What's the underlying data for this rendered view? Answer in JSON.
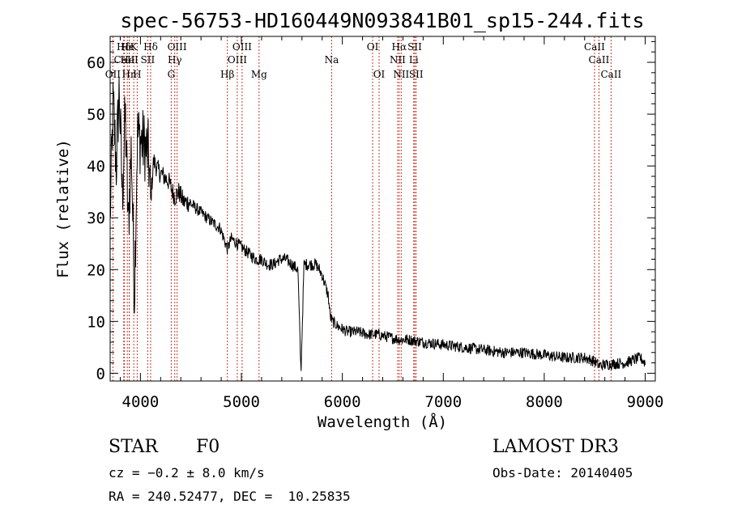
{
  "chart_data": {
    "type": "line",
    "title": "spec-56753-HD160449N093841B01_sp15-244.fits",
    "xlabel": "Wavelength (Å)",
    "ylabel": "Flux (relative)",
    "xlim": [
      3700,
      9100
    ],
    "ylim": [
      -1.5,
      65
    ],
    "xticks": [
      4000,
      5000,
      6000,
      7000,
      8000,
      9000
    ],
    "xtick_labels": [
      "4000",
      "5000",
      "6000",
      "7000",
      "8000",
      "9000"
    ],
    "yticks": [
      0,
      10,
      20,
      30,
      40,
      50,
      60
    ],
    "ytick_labels": [
      "0",
      "10",
      "20",
      "30",
      "40",
      "50",
      "60"
    ],
    "series": [
      {
        "name": "flux",
        "color": "#000000",
        "x": [
          3700,
          3730,
          3760,
          3790,
          3820,
          3850,
          3880,
          3910,
          3940,
          3970,
          4000,
          4040,
          4080,
          4101,
          4130,
          4180,
          4230,
          4280,
          4340,
          4380,
          4430,
          4480,
          4540,
          4600,
          4660,
          4720,
          4790,
          4861,
          4900,
          4960,
          5020,
          5080,
          5140,
          5200,
          5260,
          5320,
          5380,
          5440,
          5500,
          5560,
          5590,
          5620,
          5680,
          5740,
          5800,
          5860,
          5880,
          5900,
          5960,
          6050,
          6150,
          6250,
          6350,
          6450,
          6563,
          6650,
          6800,
          7000,
          7200,
          7400,
          7600,
          7800,
          8000,
          8200,
          8400,
          8498,
          8542,
          8662,
          8800,
          8950,
          9000
        ],
        "y": [
          30,
          52,
          40,
          55,
          34,
          50,
          28,
          44,
          15,
          46,
          45,
          44,
          42,
          33,
          41,
          39,
          38,
          37,
          34,
          35,
          33,
          33,
          32,
          31,
          30,
          29,
          28,
          24,
          26,
          25,
          24,
          23,
          22,
          22,
          21,
          21,
          22,
          22,
          21,
          20,
          0,
          21,
          21,
          21,
          19,
          15,
          11,
          10,
          9,
          8,
          8,
          7.5,
          7.5,
          7,
          6.5,
          6.5,
          6,
          5.5,
          5,
          4.5,
          4,
          4,
          3.5,
          3,
          3,
          2.3,
          1.5,
          1.8,
          2,
          3,
          2
        ]
      }
    ],
    "spectral_lines": [
      {
        "label": "Hδ",
        "x": 3835,
        "row": 1
      },
      {
        "label": "CaII",
        "x": 3840,
        "row": 2
      },
      {
        "label": "OII",
        "x": 3727,
        "row": 3
      },
      {
        "label": "Hε",
        "x": 3870,
        "row": 1
      },
      {
        "label": "K",
        "x": 3934,
        "row": 1
      },
      {
        "label": "HeI",
        "x": 3889,
        "row": 2
      },
      {
        "label": "Hn",
        "x": 3889,
        "row": 3
      },
      {
        "label": "H",
        "x": 3968,
        "row": 3
      },
      {
        "label": "Hδ",
        "x": 4101,
        "row": 1
      },
      {
        "label": "SII",
        "x": 4072,
        "row": 2
      },
      {
        "label": "OIII",
        "x": 4363,
        "row": 1
      },
      {
        "label": "Hγ",
        "x": 4340,
        "row": 2
      },
      {
        "label": "G",
        "x": 4305,
        "row": 3
      },
      {
        "label": "Hβ",
        "x": 4861,
        "row": 3
      },
      {
        "label": "OIII",
        "x": 5007,
        "row": 1
      },
      {
        "label": "OIII",
        "x": 4959,
        "row": 2
      },
      {
        "label": "Mg",
        "x": 5175,
        "row": 3
      },
      {
        "label": "Na",
        "x": 5894,
        "row": 2
      },
      {
        "label": "OI",
        "x": 6300,
        "row": 1
      },
      {
        "label": "OI",
        "x": 6364,
        "row": 3
      },
      {
        "label": "Hα",
        "x": 6563,
        "row": 1
      },
      {
        "label": "NII",
        "x": 6548,
        "row": 2
      },
      {
        "label": "NII",
        "x": 6583,
        "row": 3
      },
      {
        "label": "SII",
        "x": 6717,
        "row": 1
      },
      {
        "label": "Li",
        "x": 6707,
        "row": 2
      },
      {
        "label": "SII",
        "x": 6731,
        "row": 3
      },
      {
        "label": "CaII",
        "x": 8498,
        "row": 1
      },
      {
        "label": "CaII",
        "x": 8542,
        "row": 2
      },
      {
        "label": "CaII",
        "x": 8662,
        "row": 3
      }
    ],
    "line_marker_color": "#c0392b"
  },
  "info": {
    "class": "STAR",
    "subclass": "F0",
    "survey": "LAMOST DR3",
    "cz": "cz = −0.2 ± 8.0 km/s",
    "obs_date": "Obs-Date: 20140405",
    "radec": "RA = 240.52477, DEC =  10.25835"
  }
}
